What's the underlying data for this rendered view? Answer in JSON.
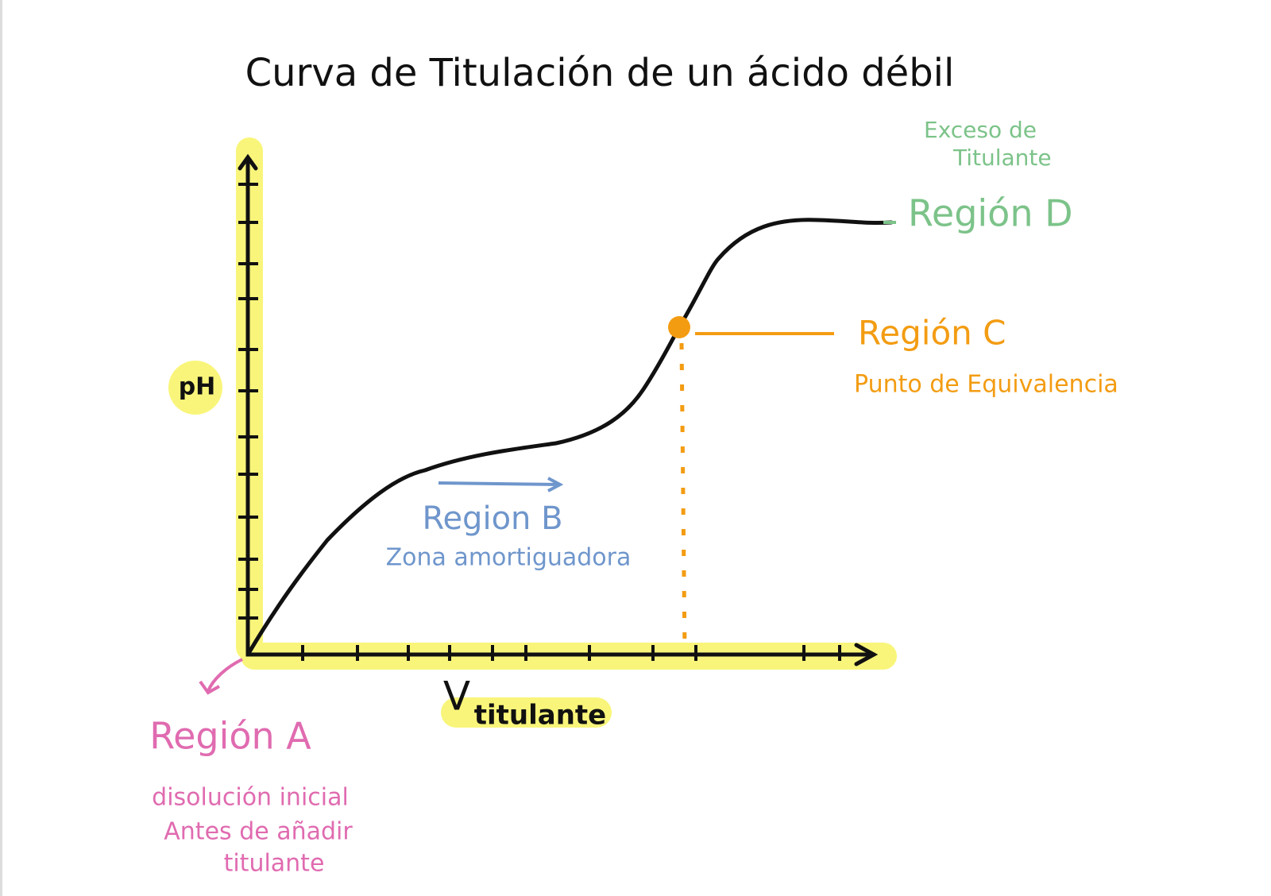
{
  "title": "Curva de Titulación de un ácido débil",
  "axes": {
    "y_label": "pH",
    "x_label_main": "V",
    "x_label_sub": "titulante"
  },
  "regions": [
    {
      "label": "Región A",
      "description": [
        "disolución inicial",
        "Antes de añadir",
        "titulante"
      ]
    },
    {
      "label": "Region B",
      "description": [
        "Zona amortiguadora"
      ]
    },
    {
      "label": "Región C",
      "description": [
        "Punto de Equivalencia"
      ]
    },
    {
      "label": "Región D",
      "description": [
        "Exceso de",
        "Titulante"
      ]
    }
  ]
}
